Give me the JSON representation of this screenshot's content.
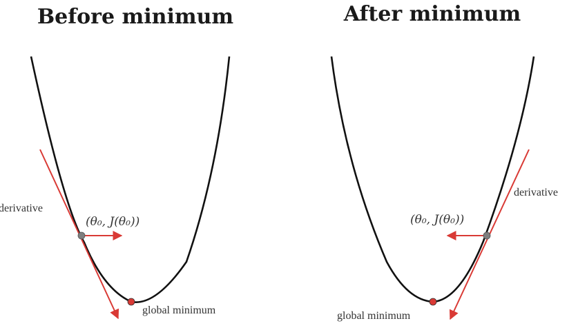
{
  "panels": [
    {
      "title": "Before minimum",
      "derivative_label": "derivative",
      "point_label": "(θ₀, J(θ₀))",
      "minimum_label": "global minimum",
      "direction": "right"
    },
    {
      "title": "After minimum",
      "derivative_label": "derivative",
      "point_label": "(θ₀, J(θ₀))",
      "minimum_label": "global minimum",
      "direction": "left"
    }
  ],
  "colors": {
    "curve": "#111111",
    "tangent": "#d93a35",
    "arrow": "#d93a35",
    "point": "#7f7f7f",
    "minimum": "#d93a35"
  }
}
